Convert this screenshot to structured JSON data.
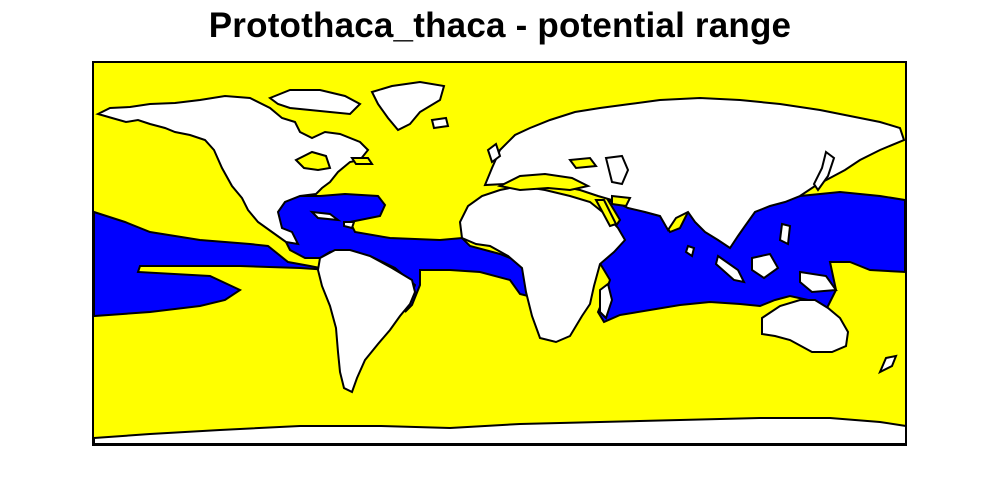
{
  "title": "Protothaca_thaca - potential range",
  "legend_colors": {
    "ocean_not_suitable": "#FFFF00",
    "ocean_suitable": "#0000FF",
    "land": "#FFFFFF",
    "outline": "#000000"
  }
}
